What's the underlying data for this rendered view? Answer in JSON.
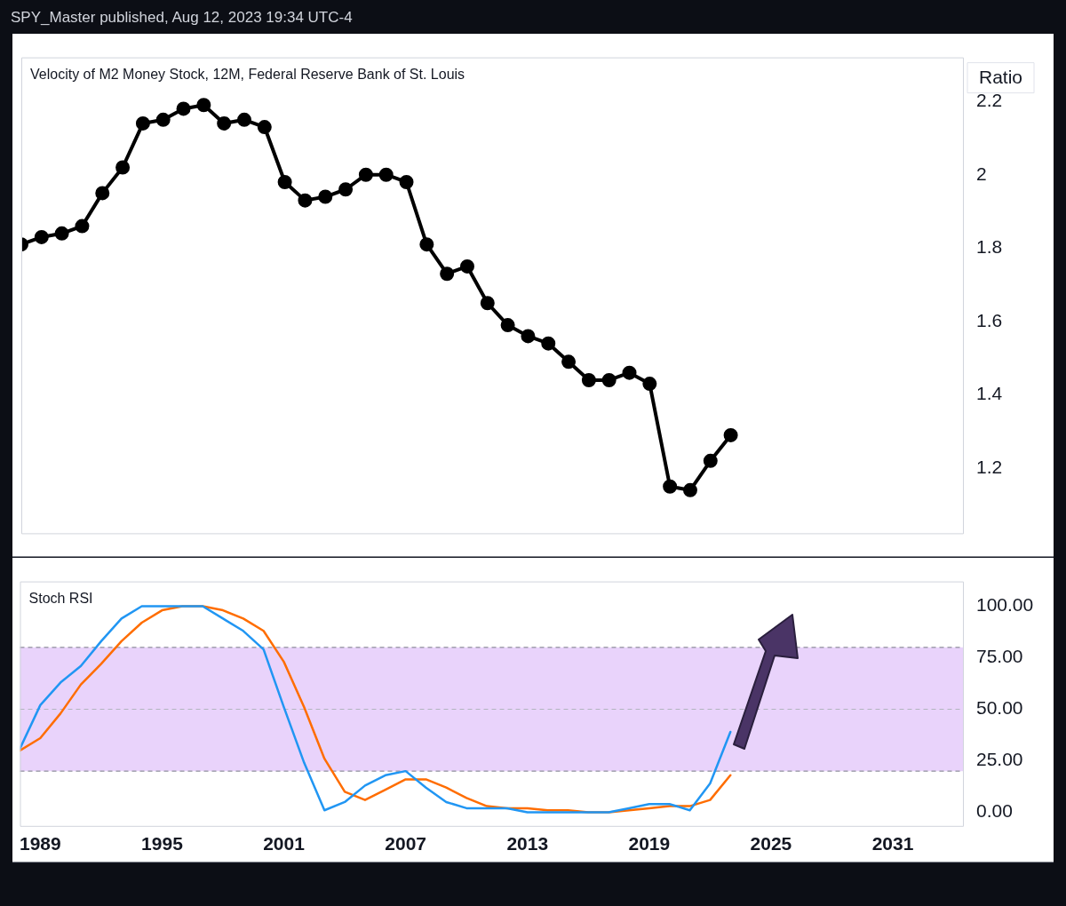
{
  "chart_data": [
    {
      "type": "line",
      "title": "Velocity of M2 Money Stock, 12M, Federal Reserve Bank of St. Louis",
      "ylabel": "Ratio",
      "annotations": [
        "SPY_Master published, Aug 12, 2023 19:34 UTC-4"
      ],
      "x": [
        1988,
        1989,
        1990,
        1991,
        1992,
        1993,
        1994,
        1995,
        1996,
        1997,
        1998,
        1999,
        2000,
        2001,
        2002,
        2003,
        2004,
        2005,
        2006,
        2007,
        2008,
        2009,
        2010,
        2011,
        2012,
        2013,
        2014,
        2015,
        2016,
        2017,
        2018,
        2019,
        2020,
        2021,
        2022,
        2023
      ],
      "series": [
        {
          "color": "#000000",
          "values": [
            1.81,
            1.83,
            1.84,
            1.86,
            1.95,
            2.02,
            2.14,
            2.15,
            2.18,
            2.19,
            2.14,
            2.15,
            2.13,
            1.98,
            1.93,
            1.94,
            1.96,
            2.0,
            2.0,
            1.98,
            1.81,
            1.73,
            1.75,
            1.65,
            1.59,
            1.56,
            1.54,
            1.49,
            1.44,
            1.44,
            1.46,
            1.43,
            1.15,
            1.14,
            1.22,
            1.29
          ]
        }
      ],
      "xlim": [
        1988,
        2034.5
      ],
      "xticks": [
        1989,
        1995,
        2001,
        2007,
        2013,
        2019,
        2025,
        2031
      ],
      "ylim": [
        1.02,
        2.32
      ],
      "yticks": [
        1.2,
        1.4,
        1.6,
        1.8,
        2,
        2.2
      ],
      "marker": "circle",
      "grid": false,
      "legend": false,
      "tick_labels": "y"
    },
    {
      "type": "line",
      "title": "Stoch RSI",
      "x": [
        1988,
        1989,
        1990,
        1991,
        1992,
        1993,
        1994,
        1995,
        1996,
        1997,
        1998,
        1999,
        2000,
        2001,
        2002,
        2003,
        2004,
        2005,
        2006,
        2007,
        2008,
        2009,
        2010,
        2011,
        2012,
        2013,
        2014,
        2015,
        2016,
        2017,
        2018,
        2019,
        2020,
        2021,
        2022,
        2023
      ],
      "series": [
        {
          "color": "#2196f3",
          "values": [
            31,
            52,
            63,
            71,
            83,
            94,
            100,
            100,
            100,
            100,
            94,
            88,
            79,
            51,
            24,
            1,
            5,
            13,
            18,
            20,
            12,
            5,
            2,
            2,
            2,
            0,
            0,
            0,
            0,
            0,
            2,
            4,
            4,
            1,
            14,
            39
          ]
        },
        {
          "color": "#ff6d00",
          "values": [
            30,
            36,
            48,
            62,
            72,
            83,
            92,
            98,
            100,
            100,
            98,
            94,
            88,
            73,
            51,
            26,
            10,
            6,
            11,
            16,
            16,
            12,
            7,
            3,
            2,
            2,
            1,
            1,
            0,
            0,
            1,
            2,
            3,
            3,
            6,
            18
          ]
        }
      ],
      "xlim": [
        1988,
        2034.5
      ],
      "xticks": [
        1989,
        1995,
        2001,
        2007,
        2013,
        2019,
        2025,
        2031
      ],
      "ylim": [
        -7,
        112
      ],
      "yticks": [
        {
          "value": 0,
          "label": "0.00"
        },
        {
          "value": 25,
          "label": "25.00"
        },
        {
          "value": 50,
          "label": "50.00"
        },
        {
          "value": 75,
          "label": "75.00"
        },
        {
          "value": 100,
          "label": "100.00"
        }
      ],
      "bands": [
        {
          "axis": "y",
          "from": 20,
          "to": 80,
          "color": "#e9d3fb"
        }
      ],
      "ref_lines": [
        {
          "axis": "y",
          "value": 80,
          "color": "#787b86",
          "line_style": "dashed"
        },
        {
          "axis": "y",
          "value": 50,
          "color": "#b2b5be",
          "line_style": "dashed"
        },
        {
          "axis": "y",
          "value": 20,
          "color": "#787b86",
          "line_style": "dashed"
        }
      ],
      "marker": "none",
      "grid": false,
      "legend": false
    }
  ]
}
